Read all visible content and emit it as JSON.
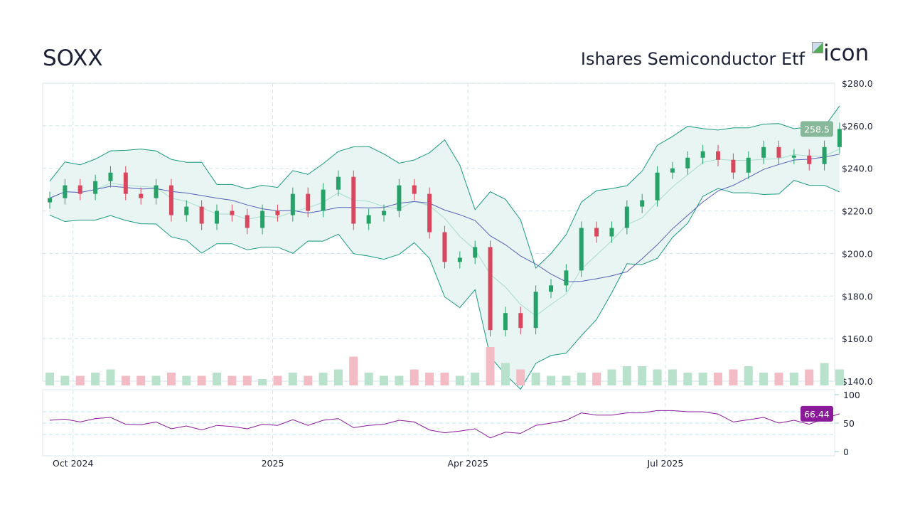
{
  "header": {
    "symbol": "SOXX",
    "name": "Ishares Semiconductor Etf",
    "icon_alt": "icon"
  },
  "chart_data": {
    "type": "candlestick",
    "x_tick_labels": [
      "Oct 2024",
      "2025",
      "Apr 2025",
      "Jul 2025"
    ],
    "y_tick_labels": [
      "$280.0",
      "$260.0",
      "$240.0",
      "$220.0",
      "$200.0",
      "$180.0",
      "$160.0",
      "$140.0"
    ],
    "ylim": [
      140,
      280
    ],
    "last_price": "258.5",
    "week_start": [
      "2024-09-17",
      "2024-09-24",
      "2024-10-01",
      "2024-10-08",
      "2024-10-15",
      "2024-10-22",
      "2024-10-29",
      "2024-11-05",
      "2024-11-12",
      "2024-11-19",
      "2024-11-26",
      "2024-12-03",
      "2024-12-10",
      "2024-12-17",
      "2024-12-24",
      "2024-12-31",
      "2025-01-07",
      "2025-01-14",
      "2025-01-21",
      "2025-01-28",
      "2025-02-04",
      "2025-02-11",
      "2025-02-18",
      "2025-02-25",
      "2025-03-04",
      "2025-03-11",
      "2025-03-18",
      "2025-03-25",
      "2025-04-01",
      "2025-04-08",
      "2025-04-15",
      "2025-04-22",
      "2025-04-29",
      "2025-05-06",
      "2025-05-13",
      "2025-05-20",
      "2025-05-27",
      "2025-06-03",
      "2025-06-10",
      "2025-06-17",
      "2025-06-24",
      "2025-07-01",
      "2025-07-08",
      "2025-07-15",
      "2025-07-22",
      "2025-07-29",
      "2025-08-05",
      "2025-08-12",
      "2025-08-19",
      "2025-08-26",
      "2025-09-02",
      "2025-09-09",
      "2025-09-16"
    ],
    "close": [
      226,
      232,
      228,
      234,
      238,
      228,
      226,
      232,
      218,
      222,
      214,
      220,
      218,
      212,
      220,
      218,
      228,
      220,
      230,
      236,
      214,
      218,
      220,
      232,
      228,
      210,
      196,
      198,
      203,
      164,
      172,
      165,
      182,
      185,
      192,
      212,
      208,
      212,
      222,
      225,
      238,
      240,
      245,
      248,
      244,
      238,
      245,
      250,
      245,
      246,
      242,
      250,
      258.5
    ],
    "volume_relative": [
      4,
      3,
      3,
      4,
      5,
      3,
      3,
      3,
      4,
      3,
      3,
      4,
      3,
      3,
      2,
      3,
      4,
      3,
      4,
      5,
      9,
      4,
      3,
      3,
      5,
      4,
      4,
      3,
      4,
      12,
      7,
      5,
      4,
      3,
      3,
      4,
      4,
      5,
      6,
      6,
      5,
      5,
      4,
      4,
      4,
      5,
      6,
      4,
      4,
      4,
      5,
      7,
      5
    ],
    "colors": {
      "up": "#26a269",
      "down": "#d9475e",
      "band": "#1a9a80",
      "last_price_badge": "#87b89a",
      "rsi": "#8a1a9a"
    },
    "indicators": {
      "bollinger_bands": true,
      "moving_averages": 2
    },
    "rsi": {
      "yticks": [
        "100",
        "50",
        "0"
      ],
      "ylim": [
        0,
        100
      ],
      "last": "66.44",
      "values": [
        55,
        57,
        52,
        58,
        60,
        48,
        47,
        52,
        40,
        45,
        38,
        46,
        44,
        40,
        48,
        46,
        56,
        46,
        55,
        58,
        42,
        46,
        48,
        55,
        52,
        38,
        33,
        36,
        40,
        24,
        34,
        32,
        46,
        50,
        55,
        68,
        64,
        64,
        68,
        68,
        72,
        72,
        70,
        70,
        66,
        52,
        56,
        60,
        50,
        55,
        48,
        58,
        66.44
      ]
    }
  }
}
